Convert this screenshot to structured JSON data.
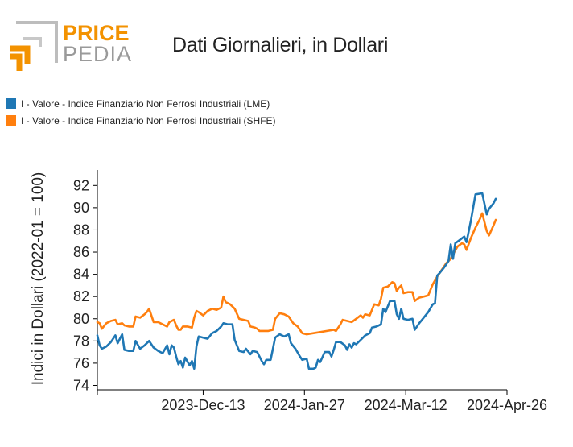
{
  "brand": {
    "line1": "PRICE",
    "line2": "PEDIA"
  },
  "colors": {
    "lme": "#1f77b4",
    "shfe": "#ff7f0e",
    "logo_orange": "#f39200",
    "logo_gray": "#9a9a9a"
  },
  "chart_data": {
    "type": "line",
    "title": "Dati Giornalieri, in Dollari",
    "ylabel": "Indici in Dollari (2022-01 = 100)",
    "xlabel": "",
    "x_range": [
      "2023-10-27",
      "2024-04-26"
    ],
    "xticks": [
      "2023-10-27",
      "2023-12-13",
      "2024-01-27",
      "2024-03-12",
      "2024-04-26"
    ],
    "xtick_labels": [
      "",
      "2023-Dec-13",
      "2024-Jan-27",
      "2024-Mar-12",
      "2024-Apr-26"
    ],
    "ylim": [
      73.6,
      93.4
    ],
    "yticks": [
      74,
      76,
      78,
      80,
      82,
      84,
      86,
      88,
      90,
      92
    ],
    "legend_position": "top-left",
    "grid": false,
    "series": [
      {
        "name": "I - Valore - Indice Finanziario Non Ferrosi Industriali (LME)",
        "color": "#1f77b4",
        "points": [
          [
            "2023-10-27",
            78.5
          ],
          [
            "2023-10-28",
            77.6
          ],
          [
            "2023-10-29",
            77.3
          ],
          [
            "2023-10-31",
            77.5
          ],
          [
            "2023-11-02",
            77.9
          ],
          [
            "2023-11-04",
            78.5
          ],
          [
            "2023-11-05",
            77.8
          ],
          [
            "2023-11-07",
            78.6
          ],
          [
            "2023-11-08",
            77.2
          ],
          [
            "2023-11-10",
            77.1
          ],
          [
            "2023-11-12",
            77.1
          ],
          [
            "2023-11-13",
            78.0
          ],
          [
            "2023-11-15",
            77.3
          ],
          [
            "2023-11-17",
            77.6
          ],
          [
            "2023-11-19",
            78.0
          ],
          [
            "2023-11-21",
            77.4
          ],
          [
            "2023-11-23",
            77.1
          ],
          [
            "2023-11-25",
            76.9
          ],
          [
            "2023-11-27",
            77.6
          ],
          [
            "2023-11-28",
            76.8
          ],
          [
            "2023-11-29",
            77.6
          ],
          [
            "2023-11-30",
            77.4
          ],
          [
            "2023-12-01",
            76.6
          ],
          [
            "2023-12-02",
            75.9
          ],
          [
            "2023-12-03",
            76.2
          ],
          [
            "2023-12-04",
            75.6
          ],
          [
            "2023-12-05",
            76.5
          ],
          [
            "2023-12-07",
            75.8
          ],
          [
            "2023-12-08",
            76.2
          ],
          [
            "2023-12-09",
            75.5
          ],
          [
            "2023-12-10",
            77.5
          ],
          [
            "2023-12-11",
            78.4
          ],
          [
            "2023-12-13",
            78.3
          ],
          [
            "2023-12-15",
            78.2
          ],
          [
            "2023-12-17",
            78.7
          ],
          [
            "2023-12-19",
            78.9
          ],
          [
            "2023-12-21",
            79.3
          ],
          [
            "2023-12-22",
            79.6
          ],
          [
            "2023-12-24",
            79.5
          ],
          [
            "2023-12-26",
            79.5
          ],
          [
            "2023-12-27",
            78.1
          ],
          [
            "2023-12-29",
            77.1
          ],
          [
            "2023-12-31",
            77.0
          ],
          [
            "2024-01-01",
            77.3
          ],
          [
            "2024-01-03",
            76.8
          ],
          [
            "2024-01-04",
            77.1
          ],
          [
            "2024-01-06",
            77.0
          ],
          [
            "2024-01-08",
            76.2
          ],
          [
            "2024-01-09",
            75.9
          ],
          [
            "2024-01-10",
            76.3
          ],
          [
            "2024-01-12",
            76.3
          ],
          [
            "2024-01-13",
            77.3
          ],
          [
            "2024-01-14",
            78.3
          ],
          [
            "2024-01-16",
            78.6
          ],
          [
            "2024-01-18",
            78.4
          ],
          [
            "2024-01-20",
            78.6
          ],
          [
            "2024-01-21",
            77.8
          ],
          [
            "2024-01-23",
            77.3
          ],
          [
            "2024-01-25",
            76.6
          ],
          [
            "2024-01-26",
            76.3
          ],
          [
            "2024-01-28",
            76.4
          ],
          [
            "2024-01-29",
            75.5
          ],
          [
            "2024-01-31",
            75.5
          ],
          [
            "2024-02-01",
            75.6
          ],
          [
            "2024-02-02",
            76.3
          ],
          [
            "2024-02-03",
            76.1
          ],
          [
            "2024-02-05",
            77.0
          ],
          [
            "2024-02-07",
            77.0
          ],
          [
            "2024-02-08",
            76.6
          ],
          [
            "2024-02-09",
            77.2
          ],
          [
            "2024-02-10",
            77.9
          ],
          [
            "2024-02-12",
            77.9
          ],
          [
            "2024-02-14",
            77.6
          ],
          [
            "2024-02-15",
            77.2
          ],
          [
            "2024-02-16",
            77.7
          ],
          [
            "2024-02-17",
            77.4
          ],
          [
            "2024-02-18",
            77.8
          ],
          [
            "2024-02-19",
            77.7
          ],
          [
            "2024-02-21",
            78.1
          ],
          [
            "2024-02-23",
            78.5
          ],
          [
            "2024-02-25",
            78.7
          ],
          [
            "2024-02-26",
            79.2
          ],
          [
            "2024-02-28",
            79.3
          ],
          [
            "2024-03-01",
            79.5
          ],
          [
            "2024-03-02",
            80.9
          ],
          [
            "2024-03-03",
            80.6
          ],
          [
            "2024-03-05",
            81.6
          ],
          [
            "2024-03-07",
            81.6
          ],
          [
            "2024-03-08",
            80.4
          ],
          [
            "2024-03-09",
            80.0
          ],
          [
            "2024-03-10",
            80.9
          ],
          [
            "2024-03-11",
            80.0
          ],
          [
            "2024-03-13",
            79.9
          ],
          [
            "2024-03-15",
            80.0
          ],
          [
            "2024-03-16",
            79.0
          ],
          [
            "2024-03-18",
            79.6
          ],
          [
            "2024-03-20",
            80.1
          ],
          [
            "2024-03-22",
            80.6
          ],
          [
            "2024-03-24",
            81.3
          ],
          [
            "2024-03-25",
            81.4
          ],
          [
            "2024-03-26",
            83.9
          ],
          [
            "2024-03-27",
            84.1
          ],
          [
            "2024-03-29",
            84.6
          ],
          [
            "2024-03-31",
            85.2
          ],
          [
            "2024-04-01",
            86.7
          ],
          [
            "2024-04-02",
            85.4
          ],
          [
            "2024-04-03",
            86.8
          ],
          [
            "2024-04-05",
            87.1
          ],
          [
            "2024-04-07",
            87.4
          ],
          [
            "2024-04-08",
            86.9
          ],
          [
            "2024-04-10",
            88.9
          ],
          [
            "2024-04-12",
            91.2
          ],
          [
            "2024-04-15",
            91.3
          ],
          [
            "2024-04-17",
            89.4
          ],
          [
            "2024-04-18",
            89.9
          ],
          [
            "2024-04-20",
            90.4
          ],
          [
            "2024-04-21",
            90.8
          ]
        ]
      },
      {
        "name": "I - Valore - Indice Finanziario Non Ferrosi Industriali (SHFE)",
        "color": "#ff7f0e",
        "points": [
          [
            "2023-10-27",
            79.7
          ],
          [
            "2023-10-28",
            79.6
          ],
          [
            "2023-10-29",
            79.1
          ],
          [
            "2023-10-31",
            79.6
          ],
          [
            "2023-11-02",
            79.8
          ],
          [
            "2023-11-04",
            79.9
          ],
          [
            "2023-11-05",
            79.5
          ],
          [
            "2023-11-07",
            79.6
          ],
          [
            "2023-11-08",
            79.4
          ],
          [
            "2023-11-10",
            79.3
          ],
          [
            "2023-11-12",
            79.3
          ],
          [
            "2023-11-13",
            80.2
          ],
          [
            "2023-11-15",
            80.1
          ],
          [
            "2023-11-17",
            80.4
          ],
          [
            "2023-11-18",
            80.6
          ],
          [
            "2023-11-19",
            80.9
          ],
          [
            "2023-11-21",
            79.7
          ],
          [
            "2023-11-23",
            79.7
          ],
          [
            "2023-11-25",
            79.5
          ],
          [
            "2023-11-27",
            79.3
          ],
          [
            "2023-11-28",
            79.7
          ],
          [
            "2023-11-30",
            79.9
          ],
          [
            "2023-12-01",
            79.4
          ],
          [
            "2023-12-02",
            79.0
          ],
          [
            "2023-12-03",
            79.0
          ],
          [
            "2023-12-04",
            79.3
          ],
          [
            "2023-12-06",
            79.3
          ],
          [
            "2023-12-08",
            79.2
          ],
          [
            "2023-12-09",
            80.1
          ],
          [
            "2023-12-10",
            80.7
          ],
          [
            "2023-12-11",
            80.6
          ],
          [
            "2023-12-13",
            80.3
          ],
          [
            "2023-12-15",
            80.7
          ],
          [
            "2023-12-17",
            80.9
          ],
          [
            "2023-12-19",
            80.8
          ],
          [
            "2023-12-21",
            81.0
          ],
          [
            "2023-12-22",
            82.0
          ],
          [
            "2023-12-23",
            81.5
          ],
          [
            "2023-12-25",
            81.3
          ],
          [
            "2023-12-27",
            80.9
          ],
          [
            "2023-12-29",
            80.0
          ],
          [
            "2023-12-31",
            79.9
          ],
          [
            "2024-01-02",
            79.8
          ],
          [
            "2024-01-03",
            79.3
          ],
          [
            "2024-01-05",
            79.2
          ],
          [
            "2024-01-06",
            79.1
          ],
          [
            "2024-01-07",
            78.9
          ],
          [
            "2024-01-09",
            78.9
          ],
          [
            "2024-01-11",
            78.9
          ],
          [
            "2024-01-13",
            79.0
          ],
          [
            "2024-01-14",
            80.0
          ],
          [
            "2024-01-16",
            80.5
          ],
          [
            "2024-01-18",
            80.4
          ],
          [
            "2024-01-20",
            80.2
          ],
          [
            "2024-01-22",
            79.6
          ],
          [
            "2024-01-24",
            79.3
          ],
          [
            "2024-01-26",
            78.7
          ],
          [
            "2024-01-28",
            78.6
          ],
          [
            "2024-01-31",
            78.7
          ],
          [
            "2024-02-03",
            78.8
          ],
          [
            "2024-02-06",
            78.9
          ],
          [
            "2024-02-09",
            79.0
          ],
          [
            "2024-02-10",
            78.9
          ],
          [
            "2024-02-12",
            79.5
          ],
          [
            "2024-02-13",
            79.9
          ],
          [
            "2024-02-15",
            79.8
          ],
          [
            "2024-02-17",
            79.7
          ],
          [
            "2024-02-19",
            80.0
          ],
          [
            "2024-02-21",
            80.3
          ],
          [
            "2024-02-22",
            80.1
          ],
          [
            "2024-02-23",
            80.4
          ],
          [
            "2024-02-25",
            80.3
          ],
          [
            "2024-02-27",
            81.3
          ],
          [
            "2024-02-29",
            81.2
          ],
          [
            "2024-03-01",
            81.8
          ],
          [
            "2024-03-02",
            82.8
          ],
          [
            "2024-03-04",
            82.9
          ],
          [
            "2024-03-06",
            83.3
          ],
          [
            "2024-03-07",
            83.2
          ],
          [
            "2024-03-08",
            82.5
          ],
          [
            "2024-03-09",
            82.8
          ],
          [
            "2024-03-10",
            83.0
          ],
          [
            "2024-03-11",
            82.3
          ],
          [
            "2024-03-13",
            82.4
          ],
          [
            "2024-03-15",
            82.4
          ],
          [
            "2024-03-16",
            81.6
          ],
          [
            "2024-03-18",
            81.9
          ],
          [
            "2024-03-20",
            82.0
          ],
          [
            "2024-03-22",
            82.1
          ],
          [
            "2024-03-24",
            83.1
          ],
          [
            "2024-03-26",
            83.8
          ],
          [
            "2024-03-28",
            84.4
          ],
          [
            "2024-03-30",
            85.0
          ],
          [
            "2024-04-01",
            85.4
          ],
          [
            "2024-04-02",
            85.8
          ],
          [
            "2024-04-04",
            86.5
          ],
          [
            "2024-04-06",
            86.8
          ],
          [
            "2024-04-07",
            86.7
          ],
          [
            "2024-04-08",
            86.2
          ],
          [
            "2024-04-10",
            87.3
          ],
          [
            "2024-04-12",
            88.2
          ],
          [
            "2024-04-14",
            89.0
          ],
          [
            "2024-04-15",
            89.5
          ],
          [
            "2024-04-17",
            87.9
          ],
          [
            "2024-04-18",
            87.5
          ],
          [
            "2024-04-20",
            88.4
          ],
          [
            "2024-04-21",
            88.9
          ]
        ]
      }
    ]
  }
}
